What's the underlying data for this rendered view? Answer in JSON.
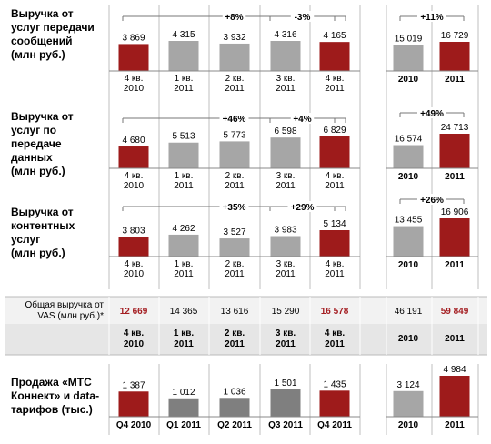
{
  "colors": {
    "red": "#9e1b1b",
    "gray": "#a6a6a6",
    "darkgray": "#7f7f7f",
    "band": "#e6e6e6",
    "line": "#bfbfbf",
    "redtext": "#a41e22"
  },
  "chart_data": [
    {
      "type": "bar",
      "title": "Выручка от услуг передачи сообщений (млн руб.)",
      "categories": [
        "4 кв. 2010",
        "1 кв. 2011",
        "2 кв. 2011",
        "3 кв. 2011",
        "4 кв. 2011"
      ],
      "values": [
        3869,
        4315,
        3932,
        4316,
        4165
      ],
      "value_labels": [
        "3 869",
        "4 315",
        "3 932",
        "4 316",
        "4 165"
      ],
      "highlight": [
        0,
        4
      ],
      "annotations": [
        "+8%",
        "-3%"
      ],
      "annual": {
        "categories": [
          "2010",
          "2011"
        ],
        "values": [
          15019,
          16729
        ],
        "value_labels": [
          "15 019",
          "16 729"
        ],
        "annotation": "+11%"
      }
    },
    {
      "type": "bar",
      "title": "Выручка от услуг по передаче данных (млн руб.)",
      "categories": [
        "4 кв. 2010",
        "1 кв. 2011",
        "2 кв. 2011",
        "3 кв. 2011",
        "4 кв. 2011"
      ],
      "values": [
        4680,
        5513,
        5773,
        6598,
        6829
      ],
      "value_labels": [
        "4 680",
        "5 513",
        "5 773",
        "6 598",
        "6 829"
      ],
      "highlight": [
        0,
        4
      ],
      "annotations": [
        "+46%",
        "+4%"
      ],
      "annual": {
        "categories": [
          "2010",
          "2011"
        ],
        "values": [
          16574,
          24713
        ],
        "value_labels": [
          "16 574",
          "24 713"
        ],
        "annotation": "+49%"
      }
    },
    {
      "type": "bar",
      "title": "Выручка от контентных услуг (млн руб.)",
      "categories": [
        "4 кв. 2010",
        "1 кв. 2011",
        "2 кв. 2011",
        "3 кв. 2011",
        "4 кв. 2011"
      ],
      "values": [
        3803,
        4262,
        3527,
        3983,
        5134
      ],
      "value_labels": [
        "3 803",
        "4 262",
        "3 527",
        "3 983",
        "5 134"
      ],
      "highlight": [
        0,
        4
      ],
      "annotations": [
        "+35%",
        "+29%"
      ],
      "annual": {
        "categories": [
          "2010",
          "2011"
        ],
        "values": [
          13455,
          16906
        ],
        "value_labels": [
          "13 455",
          "16 906"
        ],
        "annotation": "+26%"
      }
    },
    {
      "type": "table",
      "title": "Общая выручка от VAS (млн руб.)*",
      "categories": [
        "4 кв. 2010",
        "1 кв. 2011",
        "2 кв. 2011",
        "3 кв. 2011",
        "4 кв. 2011"
      ],
      "values": [
        "12 669",
        "14 365",
        "13 616",
        "15 290",
        "16 578"
      ],
      "highlight": [
        0,
        4
      ],
      "annual": {
        "categories": [
          "2010",
          "2011"
        ],
        "values": [
          "46 191",
          "59 849"
        ],
        "highlight": [
          1
        ]
      }
    },
    {
      "type": "bar",
      "title": "Продажа «МТС Коннект» и data-тарифов (тыс.)",
      "categories": [
        "Q4 2010",
        "Q1 2011",
        "Q2 2011",
        "Q3 2011",
        "Q4 2011"
      ],
      "values": [
        1387,
        1012,
        1036,
        1501,
        1435
      ],
      "value_labels": [
        "1 387",
        "1 012",
        "1 036",
        "1 501",
        "1 435"
      ],
      "highlight": [
        0,
        4
      ],
      "annual": {
        "categories": [
          "2010",
          "2011"
        ],
        "values": [
          3124,
          4984
        ],
        "value_labels": [
          "3 124",
          "4 984"
        ]
      }
    }
  ],
  "labels": {
    "row1": [
      "Выручка от",
      "услуг передачи",
      "сообщений",
      "(млн руб.)"
    ],
    "row2": [
      "Выручка от",
      "услуг по",
      "передаче",
      "данных",
      "(млн руб.)"
    ],
    "row3": [
      "Выручка от",
      "контентных",
      "услуг",
      "(млн руб.)"
    ],
    "row4": [
      "Общая выручка от",
      "VAS (млн руб.)*"
    ],
    "row5": [
      "Продажа «МТС",
      "Коннект» и data-",
      "тарифов (тыс.)"
    ]
  }
}
